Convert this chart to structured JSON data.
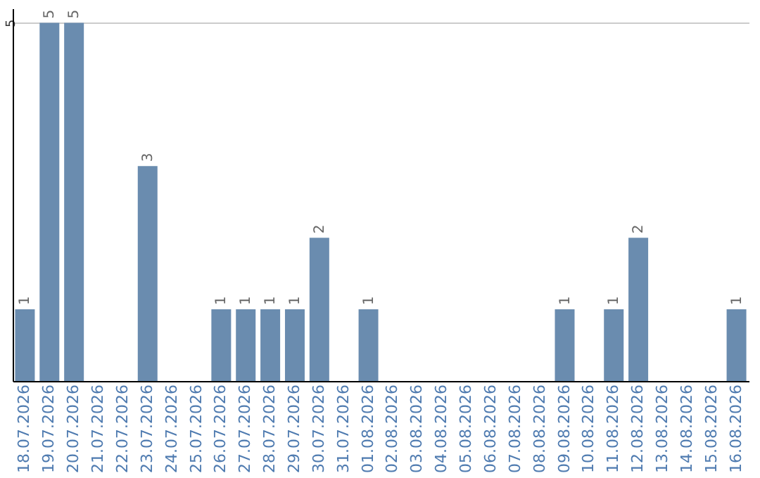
{
  "chart_data": {
    "type": "bar",
    "categories": [
      "18.07.2026",
      "19.07.2026",
      "20.07.2026",
      "21.07.2026",
      "22.07.2026",
      "23.07.2026",
      "24.07.2026",
      "25.07.2026",
      "26.07.2026",
      "27.07.2026",
      "28.07.2026",
      "29.07.2026",
      "30.07.2026",
      "31.07.2026",
      "01.08.2026",
      "02.08.2026",
      "03.08.2026",
      "04.08.2026",
      "05.08.2026",
      "06.08.2026",
      "07.08.2026",
      "08.08.2026",
      "09.08.2026",
      "10.08.2026",
      "11.08.2026",
      "12.08.2026",
      "13.08.2026",
      "14.08.2026",
      "15.08.2026",
      "16.08.2026"
    ],
    "values": [
      1,
      5,
      5,
      0,
      0,
      3,
      0,
      0,
      1,
      1,
      1,
      1,
      2,
      0,
      1,
      0,
      0,
      0,
      0,
      0,
      0,
      0,
      1,
      0,
      1,
      2,
      0,
      0,
      0,
      1
    ],
    "value_labels": [
      "1",
      "5",
      "5",
      null,
      null,
      "3",
      null,
      null,
      "1",
      "1",
      "1",
      "1",
      "2",
      null,
      "1",
      null,
      null,
      null,
      null,
      null,
      null,
      null,
      "1",
      null,
      "1",
      "2",
      null,
      null,
      null,
      "1"
    ],
    "color": "#6a8caf",
    "ylim": [
      0,
      5.2
    ],
    "yticks": [
      5
    ],
    "grid": "y"
  }
}
